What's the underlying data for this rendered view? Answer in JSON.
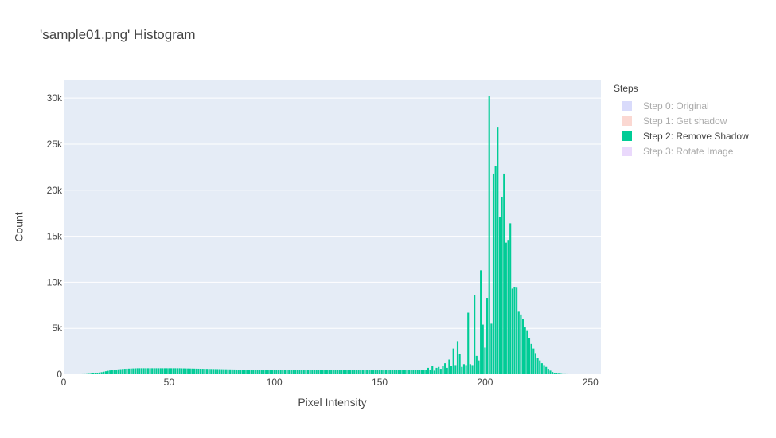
{
  "chart_data": {
    "type": "bar",
    "title": "'sample01.png' Histogram",
    "xlabel": "Pixel Intensity",
    "ylabel": "Count",
    "xlim": [
      0,
      255
    ],
    "ylim": [
      0,
      32000
    ],
    "xticks": [
      0,
      50,
      100,
      150,
      200,
      250
    ],
    "yticks": [
      0,
      5000,
      10000,
      15000,
      20000,
      25000,
      30000
    ],
    "ytick_labels": [
      "0",
      "5k",
      "10k",
      "15k",
      "20k",
      "25k",
      "30k"
    ],
    "grid": true,
    "legend_title": "Steps",
    "legend_position": "right",
    "series": [
      {
        "name": "Step 0: Original",
        "color": "#b3b8f8",
        "visible": false
      },
      {
        "name": "Step 1: Get shadow",
        "color": "#f7b2a5",
        "visible": false
      },
      {
        "name": "Step 2: Remove Shadow",
        "color": "#00cc96",
        "visible": true,
        "x_start": 0,
        "values": [
          0,
          0,
          0,
          0,
          0,
          0,
          0,
          0,
          0,
          5,
          10,
          20,
          40,
          60,
          90,
          120,
          150,
          190,
          230,
          280,
          330,
          380,
          420,
          460,
          500,
          520,
          540,
          560,
          580,
          600,
          610,
          620,
          630,
          640,
          650,
          660,
          660,
          660,
          660,
          660,
          660,
          660,
          660,
          660,
          660,
          660,
          660,
          660,
          660,
          660,
          660,
          660,
          660,
          660,
          660,
          660,
          650,
          645,
          640,
          635,
          630,
          625,
          620,
          615,
          610,
          605,
          600,
          595,
          590,
          585,
          580,
          575,
          570,
          565,
          560,
          555,
          550,
          545,
          540,
          535,
          530,
          525,
          520,
          515,
          510,
          505,
          500,
          495,
          490,
          485,
          480,
          478,
          476,
          474,
          472,
          470,
          468,
          466,
          464,
          462,
          460,
          460,
          460,
          460,
          460,
          460,
          460,
          460,
          460,
          460,
          460,
          460,
          460,
          460,
          460,
          460,
          460,
          460,
          460,
          460,
          460,
          460,
          460,
          460,
          460,
          460,
          460,
          460,
          460,
          460,
          460,
          460,
          460,
          460,
          460,
          460,
          460,
          460,
          460,
          460,
          460,
          460,
          460,
          460,
          460,
          460,
          460,
          460,
          460,
          460,
          460,
          460,
          460,
          460,
          460,
          460,
          460,
          460,
          460,
          460,
          460,
          460,
          460,
          460,
          460,
          460,
          460,
          460,
          460,
          460,
          460,
          500,
          450,
          700,
          500,
          900,
          400,
          700,
          800,
          600,
          900,
          1200,
          700,
          1600,
          900,
          2800,
          1000,
          3600,
          2200,
          800,
          1100,
          1000,
          6700,
          1100,
          1000,
          8600,
          2000,
          1500,
          11300,
          5400,
          2900,
          8300,
          30200,
          5500,
          21800,
          22600,
          26800,
          17100,
          19200,
          21800,
          14300,
          14600,
          16400,
          9300,
          9500,
          9400,
          6800,
          6500,
          6000,
          5100,
          4700,
          3900,
          3300,
          2800,
          2300,
          1800,
          1500,
          1200,
          1000,
          800,
          600,
          400,
          250,
          150,
          100,
          60,
          40,
          20,
          10,
          5,
          0,
          0,
          0,
          0,
          0,
          0,
          0,
          0,
          0,
          0,
          0,
          0,
          0,
          0,
          0,
          0,
          0,
          0
        ]
      },
      {
        "name": "Step 3: Rotate Image",
        "color": "#d6b3f9",
        "visible": false
      }
    ]
  }
}
